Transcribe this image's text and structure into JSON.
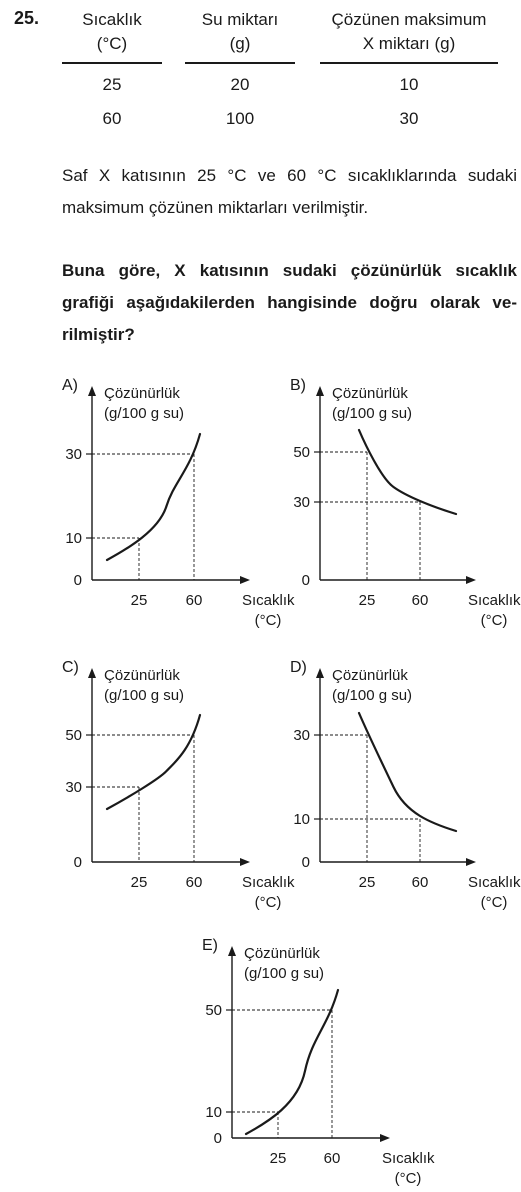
{
  "question": {
    "number": "25.",
    "table": {
      "headers": [
        [
          "Sıcaklık",
          "(°C)"
        ],
        [
          "Su miktarı",
          "(g)"
        ],
        [
          "Çözünen maksimum",
          "X miktarı (g)"
        ]
      ],
      "rows": [
        [
          "25",
          "20",
          "10"
        ],
        [
          "60",
          "100",
          "30"
        ]
      ]
    },
    "statement_lines": [
      "Saf X katısının 25 °C ve 60 °C sıcaklıklarında sudaki",
      "maksimum çözünen miktarları verilmiştir."
    ],
    "prompt_lines": [
      "Buna göre, X katısının sudaki çözünürlük sıcaklık",
      "grafiği aşağıdakilerden hangisinde doğru olarak ve-",
      "rilmiştir?"
    ]
  },
  "chart_data": [
    {
      "type": "line",
      "option": "A)",
      "ylabel": [
        "Çözünürlük",
        "(g/100 g su)"
      ],
      "xlabel": [
        "Sıcaklık",
        "(°C)"
      ],
      "x": [
        25,
        60
      ],
      "y": [
        10,
        30
      ],
      "y_ticks": [
        "30",
        "10",
        "0"
      ],
      "x_ticks": [
        "25",
        "60"
      ],
      "curve": "increasing"
    },
    {
      "type": "line",
      "option": "B)",
      "ylabel": [
        "Çözünürlük",
        "(g/100 g su)"
      ],
      "xlabel": [
        "Sıcaklık",
        "(°C)"
      ],
      "x": [
        25,
        60
      ],
      "y": [
        50,
        30
      ],
      "y_ticks": [
        "50",
        "30",
        "0"
      ],
      "x_ticks": [
        "25",
        "60"
      ],
      "curve": "decreasing"
    },
    {
      "type": "line",
      "option": "C)",
      "ylabel": [
        "Çözünürlük",
        "(g/100 g su)"
      ],
      "xlabel": [
        "Sıcaklık",
        "(°C)"
      ],
      "x": [
        25,
        60
      ],
      "y": [
        30,
        50
      ],
      "y_ticks": [
        "50",
        "30",
        "0"
      ],
      "x_ticks": [
        "25",
        "60"
      ],
      "curve": "increasing"
    },
    {
      "type": "line",
      "option": "D)",
      "ylabel": [
        "Çözünürlük",
        "(g/100 g su)"
      ],
      "xlabel": [
        "Sıcaklık",
        "(°C)"
      ],
      "x": [
        25,
        60
      ],
      "y": [
        30,
        10
      ],
      "y_ticks": [
        "30",
        "10",
        "0"
      ],
      "x_ticks": [
        "25",
        "60"
      ],
      "curve": "decreasing"
    },
    {
      "type": "line",
      "option": "E)",
      "ylabel": [
        "Çözünürlük",
        "(g/100 g su)"
      ],
      "xlabel": [
        "Sıcaklık",
        "(°C)"
      ],
      "x": [
        25,
        60
      ],
      "y": [
        10,
        50
      ],
      "y_ticks": [
        "50",
        "10",
        "0"
      ],
      "x_ticks": [
        "25",
        "60"
      ],
      "curve": "increasing"
    }
  ]
}
